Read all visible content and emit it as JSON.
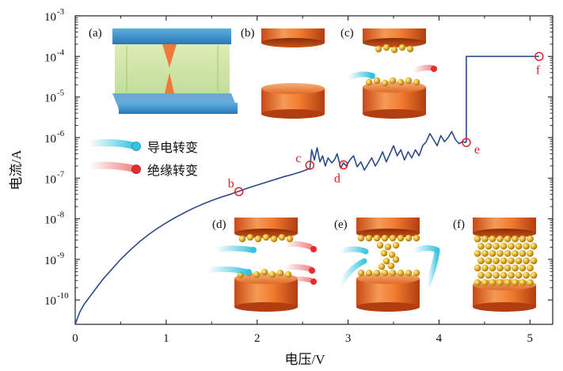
{
  "chart_data": {
    "type": "line",
    "xlabel": "电压/V",
    "ylabel": "电流/A",
    "xlim": [
      0,
      5.25
    ],
    "ylim_log10": [
      -10.6,
      -3
    ],
    "log_y": true,
    "x_ticks": [
      "0",
      "1",
      "2",
      "3",
      "4",
      "5"
    ],
    "y_ticks": [
      {
        "base": "10",
        "exp": "-3"
      },
      {
        "base": "10",
        "exp": "-4"
      },
      {
        "base": "10",
        "exp": "-5"
      },
      {
        "base": "10",
        "exp": "-6"
      },
      {
        "base": "10",
        "exp": "-7"
      },
      {
        "base": "10",
        "exp": "-8"
      },
      {
        "base": "10",
        "exp": "-9"
      },
      {
        "base": "10",
        "exp": "-10"
      }
    ],
    "line_color": "#2b4a8a",
    "marker_color": "#e02424",
    "series": [
      {
        "x": [
          0.0,
          0.05,
          0.1,
          0.2,
          0.3,
          0.4,
          0.5,
          0.6,
          0.7,
          0.8,
          0.9,
          1.0,
          1.1,
          1.2,
          1.3,
          1.4,
          1.5,
          1.6,
          1.7,
          1.8,
          1.9,
          2.0,
          2.1,
          2.2,
          2.3,
          2.4,
          2.5,
          2.58,
          2.6,
          2.63,
          2.66,
          2.69,
          2.72,
          2.75,
          2.78,
          2.82,
          2.85,
          2.88,
          2.92,
          2.95,
          2.98,
          3.02,
          3.06,
          3.1,
          3.14,
          3.18,
          3.22,
          3.26,
          3.3,
          3.34,
          3.38,
          3.42,
          3.46,
          3.5,
          3.54,
          3.58,
          3.62,
          3.66,
          3.7,
          3.74,
          3.78,
          3.82,
          3.86,
          3.9,
          3.94,
          3.98,
          4.02,
          4.06,
          4.1,
          4.14,
          4.18,
          4.22,
          4.26,
          4.29,
          4.3,
          4.3,
          5.1
        ],
        "y_log10": [
          -10.6,
          -10.3,
          -10.1,
          -9.8,
          -9.5,
          -9.25,
          -9.0,
          -8.78,
          -8.58,
          -8.4,
          -8.24,
          -8.1,
          -7.97,
          -7.85,
          -7.74,
          -7.64,
          -7.55,
          -7.47,
          -7.4,
          -7.32,
          -7.24,
          -7.17,
          -7.1,
          -7.03,
          -6.96,
          -6.9,
          -6.83,
          -6.76,
          -6.3,
          -6.55,
          -6.25,
          -6.6,
          -6.45,
          -6.7,
          -6.5,
          -6.62,
          -6.55,
          -6.4,
          -6.75,
          -6.62,
          -6.7,
          -6.55,
          -6.45,
          -6.72,
          -6.6,
          -6.8,
          -6.65,
          -6.5,
          -6.7,
          -6.55,
          -6.35,
          -6.6,
          -6.4,
          -6.2,
          -6.45,
          -6.3,
          -6.55,
          -6.35,
          -6.5,
          -6.3,
          -6.45,
          -6.2,
          -6.1,
          -5.9,
          -6.05,
          -6.2,
          -5.95,
          -6.1,
          -6.0,
          -5.85,
          -6.05,
          -6.15,
          -6.1,
          -6.12,
          -6.1,
          -4.0,
          -4.0
        ]
      }
    ],
    "markers": [
      {
        "label": "b",
        "x": 1.8,
        "y_log10": -7.33
      },
      {
        "label": "c",
        "x": 2.58,
        "y_log10": -6.68
      },
      {
        "label": "d",
        "x": 2.95,
        "y_log10": -6.67
      },
      {
        "label": "e",
        "x": 4.3,
        "y_log10": -6.12
      },
      {
        "label": "f",
        "x": 5.1,
        "y_log10": -4.0
      }
    ],
    "panel_labels": [
      "(a)",
      "(b)",
      "(c)",
      "(d)",
      "(e)",
      "(f)"
    ],
    "legend": [
      {
        "label": "导电转变",
        "color": "#35c4e0"
      },
      {
        "label": "绝缘转变",
        "color": "#e62c2c"
      }
    ]
  }
}
